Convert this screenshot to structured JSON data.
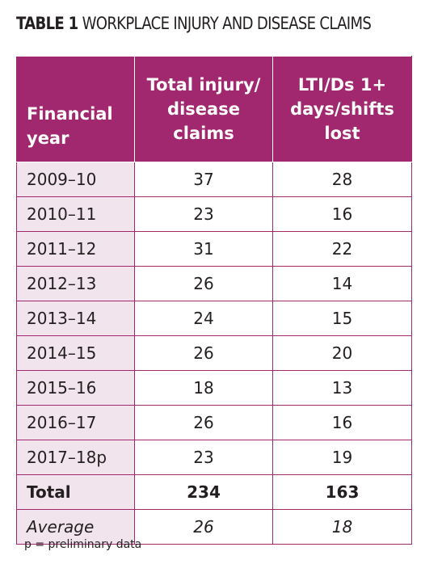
{
  "title": {
    "label": "TABLE 1",
    "name": "WORKPLACE INJURY AND DISEASE CLAIMS"
  },
  "table": {
    "headers": {
      "col1": [
        "Financial",
        "year"
      ],
      "col2": [
        "Total injury/",
        "disease",
        "claims"
      ],
      "col3": [
        "LTI/Ds 1+",
        "days/shifts",
        "lost"
      ]
    },
    "rows": [
      {
        "year": "2009–10",
        "claims": "37",
        "lost": "28"
      },
      {
        "year": "2010–11",
        "claims": "23",
        "lost": "16"
      },
      {
        "year": "2011–12",
        "claims": "31",
        "lost": "22"
      },
      {
        "year": "2012–13",
        "claims": "26",
        "lost": "14"
      },
      {
        "year": "2013–14",
        "claims": "24",
        "lost": "15"
      },
      {
        "year": "2014–15",
        "claims": "26",
        "lost": "20"
      },
      {
        "year": "2015–16",
        "claims": "18",
        "lost": "13"
      },
      {
        "year": "2016–17",
        "claims": "26",
        "lost": "16"
      },
      {
        "year": "2017–18p",
        "claims": "23",
        "lost": "19"
      }
    ],
    "total": {
      "label": "Total",
      "claims": "234",
      "lost": "163"
    },
    "average": {
      "label": "Average",
      "claims": "26",
      "lost": "18"
    }
  },
  "note": "p = preliminary data",
  "colors": {
    "header_bg": "#a1286f",
    "year_cell_bg": "#f2e4ec",
    "border": "#a1286f"
  }
}
